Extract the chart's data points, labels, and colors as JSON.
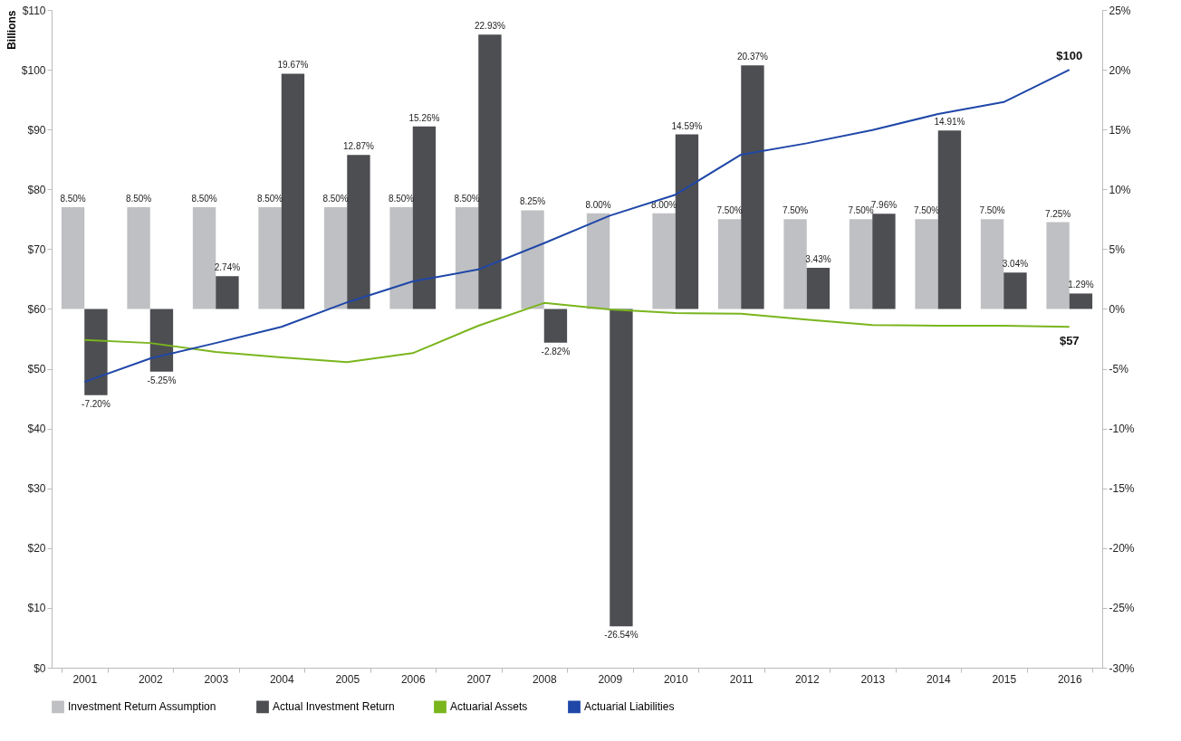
{
  "chart_data": {
    "type": "bar",
    "ylabel": "Billions",
    "categories": [
      "2001",
      "2002",
      "2003",
      "2004",
      "2005",
      "2006",
      "2007",
      "2008",
      "2009",
      "2010",
      "2011",
      "2012",
      "2013",
      "2014",
      "2015",
      "2016"
    ],
    "series": [
      {
        "name": "Investment Return Assumption",
        "axis": "y2",
        "color": "#bfc0c3",
        "values": [
          8.5,
          8.5,
          8.5,
          8.5,
          8.5,
          8.5,
          8.5,
          8.25,
          8.0,
          8.0,
          7.5,
          7.5,
          7.5,
          7.5,
          7.5,
          7.25
        ],
        "value_labels": [
          "8.50%",
          "8.50%",
          "8.50%",
          "8.50%",
          "8.50%",
          "8.50%",
          "8.50%",
          "8.25%",
          "8.00%",
          "8.00%",
          "7.50%",
          "7.50%",
          "7.50%",
          "7.50%",
          "7.50%",
          "7.25%"
        ]
      },
      {
        "name": "Actual Investment Return",
        "axis": "y2",
        "color": "#4d4e52",
        "values": [
          -7.2,
          -5.25,
          2.74,
          19.67,
          12.87,
          15.26,
          22.93,
          -2.82,
          -26.54,
          14.59,
          20.37,
          3.43,
          7.96,
          14.91,
          3.04,
          1.29
        ],
        "value_labels": [
          "-7.20%",
          "-5.25%",
          "2.74%",
          "19.67%",
          "12.87%",
          "15.26%",
          "22.93%",
          "-2.82%",
          "-26.54%",
          "14.59%",
          "20.37%",
          "3.43%",
          "7.96%",
          "14.91%",
          "3.04%",
          "1.29%"
        ]
      },
      {
        "name": "Actuarial Assets",
        "type": "line",
        "axis": "y",
        "color": "#7ab51d",
        "values": [
          54.8,
          54.3,
          52.8,
          51.9,
          51.1,
          52.6,
          57.2,
          61.0,
          59.9,
          59.3,
          59.2,
          58.2,
          57.3,
          57.2,
          57.2,
          57
        ]
      },
      {
        "name": "Actuarial Liabilities",
        "type": "line",
        "axis": "y",
        "color": "#1f47a8",
        "values": [
          47.8,
          51.7,
          54.3,
          57.0,
          61.1,
          64.6,
          66.6,
          71.0,
          75.6,
          79.1,
          85.8,
          87.7,
          89.9,
          92.6,
          94.6,
          100
        ]
      }
    ],
    "ylim": [
      0,
      110
    ],
    "yticks": [
      {
        "value": 0,
        "label": "$0"
      },
      {
        "value": 10,
        "label": "$10"
      },
      {
        "value": 20,
        "label": "$20"
      },
      {
        "value": 30,
        "label": "$30"
      },
      {
        "value": 40,
        "label": "$40"
      },
      {
        "value": 50,
        "label": "$50"
      },
      {
        "value": 60,
        "label": "$60"
      },
      {
        "value": 70,
        "label": "$70"
      },
      {
        "value": 80,
        "label": "$80"
      },
      {
        "value": 90,
        "label": "$90"
      },
      {
        "value": 100,
        "label": "$100"
      },
      {
        "value": 110,
        "label": "$110"
      }
    ],
    "y2lim": [
      -30,
      25
    ],
    "y2ticks": [
      {
        "value": -30,
        "label": "-30%"
      },
      {
        "value": -25,
        "label": "-25%"
      },
      {
        "value": -20,
        "label": "-20%"
      },
      {
        "value": -15,
        "label": "-15%"
      },
      {
        "value": -10,
        "label": "-10%"
      },
      {
        "value": -5,
        "label": "-5%"
      },
      {
        "value": 0,
        "label": "0%"
      },
      {
        "value": 5,
        "label": "5%"
      },
      {
        "value": 10,
        "label": "10%"
      },
      {
        "value": 15,
        "label": "15%"
      },
      {
        "value": 20,
        "label": "20%"
      },
      {
        "value": 25,
        "label": "25%"
      }
    ],
    "annotations": [
      {
        "text": "$100",
        "x": "2016",
        "y": 100
      },
      {
        "text": "$57",
        "x": "2016",
        "y": 57
      }
    ],
    "grid": false,
    "legend": "bottom"
  }
}
